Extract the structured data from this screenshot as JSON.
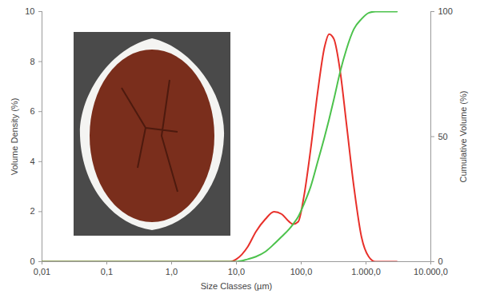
{
  "chart_data": {
    "type": "line",
    "x_label": "Size Classes (µm)",
    "y_label": "Volume Density (%)",
    "y2_label": "Cumulative Volume (%)",
    "log": "x",
    "grid": false,
    "xlim": [
      0.01,
      10000
    ],
    "xticks": [
      {
        "value": 0.01,
        "label": "0,01"
      },
      {
        "value": 0.1,
        "label": "0,1"
      },
      {
        "value": 1,
        "label": "1,0"
      },
      {
        "value": 10,
        "label": "10,0"
      },
      {
        "value": 100,
        "label": "100,0"
      },
      {
        "value": 1000,
        "label": "1.000,0"
      },
      {
        "value": 10000,
        "label": "10.000,0"
      }
    ],
    "ylim": [
      0,
      10
    ],
    "yticks": [
      0,
      2,
      4,
      6,
      8,
      10
    ],
    "y2lim": [
      0,
      100
    ],
    "y2ticks": [
      0,
      50,
      100
    ],
    "x": [
      0.01,
      8,
      10,
      15,
      20,
      28,
      38,
      50,
      65,
      75,
      90,
      110,
      140,
      180,
      230,
      270,
      320,
      400,
      500,
      650,
      850,
      1100,
      1400,
      3000
    ],
    "series": [
      {
        "color": "#e8302a",
        "values": [
          0,
          0,
          0.1,
          0.6,
          1.2,
          1.7,
          2.0,
          1.9,
          1.6,
          1.5,
          1.6,
          2.6,
          4.5,
          6.8,
          8.6,
          9.1,
          8.9,
          7.6,
          5.5,
          3.0,
          1.0,
          0.2,
          0,
          0
        ]
      },
      {
        "color": "#4cc24c",
        "axis": "y2",
        "values": [
          0,
          0,
          0,
          1,
          2,
          4,
          7,
          10,
          13,
          15,
          18,
          23,
          30,
          40,
          50,
          57,
          65,
          76,
          85,
          93,
          97,
          99.5,
          100,
          100
        ]
      }
    ]
  }
}
